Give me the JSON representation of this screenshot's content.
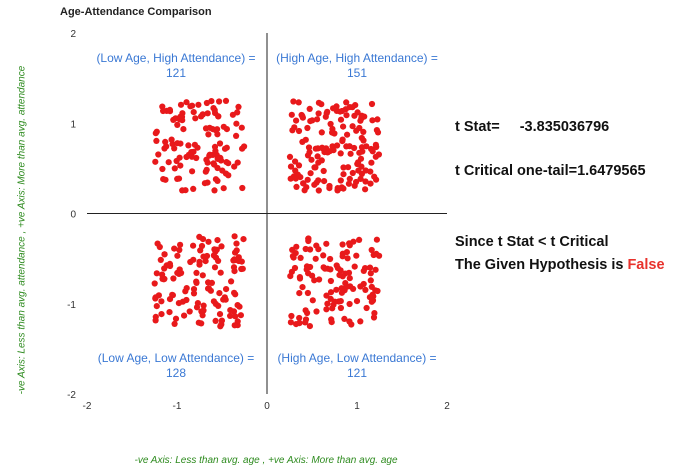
{
  "chart_data": {
    "type": "scatter",
    "title": "Age-Attendance Comparison",
    "xlabel": "-ve Axis: Less than avg. age , +ve Axis: More than avg. age",
    "ylabel": "-ve Axis: Less than avg. attendance , +ve Axis: More than avg. attendance",
    "xlim": [
      -2,
      2
    ],
    "ylim": [
      -2,
      2
    ],
    "x_ticks": [
      "-2",
      "-1",
      "0",
      "1",
      "2"
    ],
    "y_ticks": [
      "2",
      "1",
      "0",
      "-1",
      "-2"
    ],
    "grid": false,
    "point_color": "#e8191b",
    "quadrants": [
      {
        "label_line1": "(Low Age, High Attendance) =",
        "count": "121",
        "x_range": [
          -1.25,
          -0.25
        ],
        "y_range": [
          0.25,
          1.25
        ]
      },
      {
        "label_line1": "(High Age, High Attendance) =",
        "count": "151",
        "x_range": [
          0.25,
          1.25
        ],
        "y_range": [
          0.25,
          1.25
        ]
      },
      {
        "label_line1": "(Low Age, Low Attendance) =",
        "count": "128",
        "x_range": [
          -1.25,
          -0.25
        ],
        "y_range": [
          -1.25,
          -0.25
        ]
      },
      {
        "label_line1": "(High Age, Low Attendance) =",
        "count": "121",
        "x_range": [
          0.25,
          1.25
        ],
        "y_range": [
          -1.25,
          -0.25
        ]
      }
    ]
  },
  "stats": {
    "t_stat_label": "t Stat=",
    "t_stat_value": "-3.835036796",
    "t_critical": "t Critical one-tail=1.6479565",
    "conclusion_line1": "Since t Stat < t Critical",
    "conclusion_line2_prefix": "The Given Hypothesis is ",
    "conclusion_result": "False",
    "result_color": "#e8322c"
  }
}
